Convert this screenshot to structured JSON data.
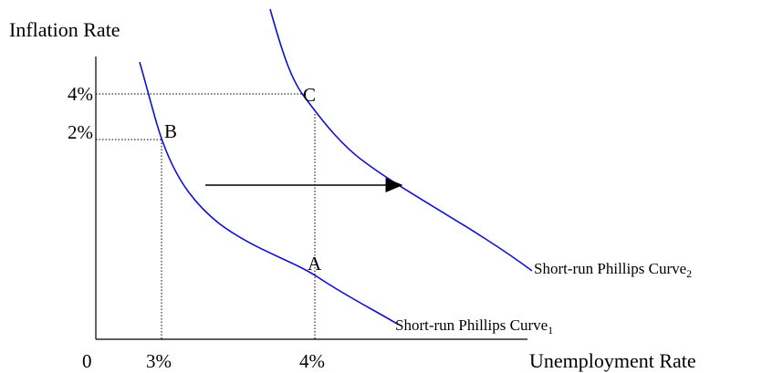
{
  "axes": {
    "y_label": "Inflation Rate",
    "x_label": "Unemployment Rate",
    "origin": "0",
    "x_ticks": [
      "3%",
      "4%"
    ],
    "y_ticks": [
      "4%",
      "2%"
    ]
  },
  "points": {
    "b": "B",
    "c": "C",
    "a": "A"
  },
  "curves": [
    {
      "label": "Short-run Phillips Curve",
      "subscript": "1"
    },
    {
      "label": "Short-run Phillips Curve",
      "subscript": "2"
    }
  ]
}
